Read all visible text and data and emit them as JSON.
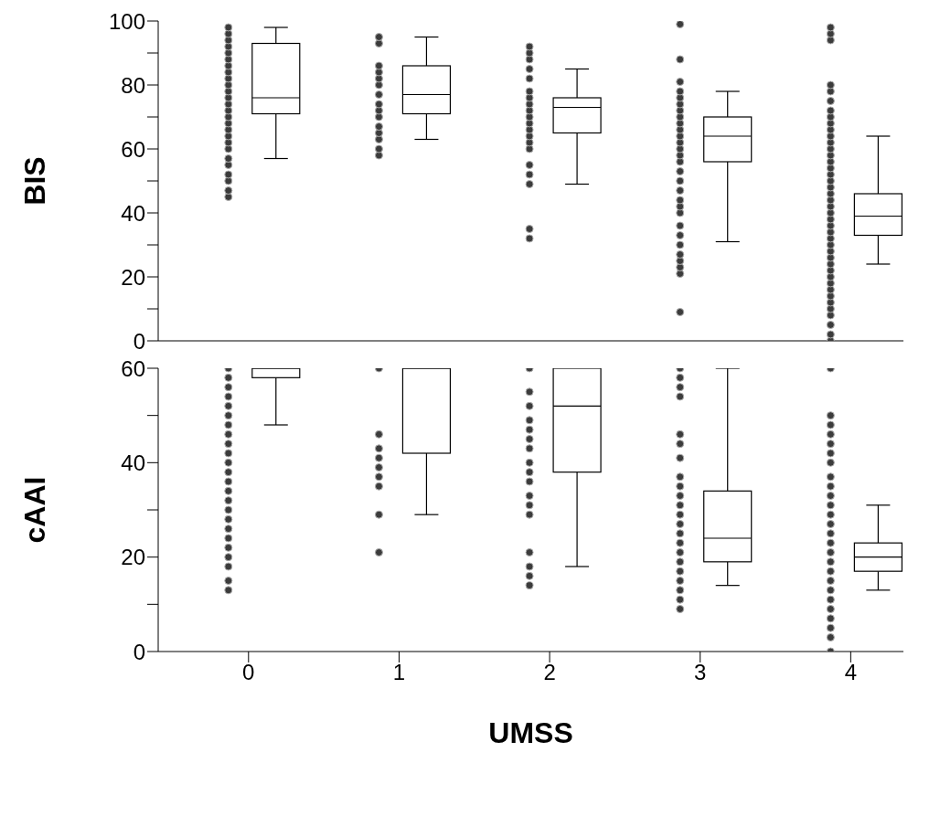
{
  "chart_data": [
    {
      "type": "box",
      "ylabel": "BIS",
      "categories": [
        "0",
        "1",
        "2",
        "3",
        "4"
      ],
      "tick_labels": "y",
      "marker": "circle",
      "ylim": [
        0,
        100
      ],
      "yticks": [
        0,
        {
          "value": 10,
          "label": null
        },
        20,
        {
          "value": 30,
          "label": null
        },
        40,
        {
          "value": 50,
          "label": null
        },
        60,
        {
          "value": 70,
          "label": null
        },
        80,
        {
          "value": 90,
          "label": null
        },
        100
      ],
      "boxes": [
        {
          "low": 57,
          "q1": 71,
          "median": 76,
          "q3": 93,
          "high": 98
        },
        {
          "low": 63,
          "q1": 71,
          "median": 77,
          "q3": 86,
          "high": 95
        },
        {
          "low": 49,
          "q1": 65,
          "median": 73,
          "q3": 76,
          "high": 85
        },
        {
          "low": 31,
          "q1": 56,
          "median": 64,
          "q3": 70,
          "high": 78
        },
        {
          "low": 24,
          "q1": 33,
          "median": 39,
          "q3": 46,
          "high": 64
        }
      ],
      "series": [
        {
          "type": "scatter",
          "color": "#3c3c3c",
          "x": [
            "0",
            "0",
            "0",
            "0",
            "0",
            "0",
            "0",
            "0",
            "0",
            "0",
            "0",
            "0",
            "0",
            "0",
            "0",
            "0",
            "0",
            "0",
            "0",
            "0",
            "0",
            "0",
            "0",
            "0",
            "0",
            "0"
          ],
          "values": [
            45,
            47,
            50,
            52,
            55,
            57,
            60,
            62,
            64,
            66,
            68,
            70,
            72,
            74,
            76,
            78,
            80,
            82,
            84,
            86,
            88,
            90,
            92,
            94,
            96,
            98
          ]
        },
        {
          "type": "scatter",
          "color": "#3c3c3c",
          "x": [
            "1",
            "1",
            "1",
            "1",
            "1",
            "1",
            "1",
            "1",
            "1",
            "1",
            "1",
            "1",
            "1",
            "1",
            "1"
          ],
          "values": [
            58,
            60,
            63,
            65,
            67,
            70,
            72,
            74,
            77,
            80,
            82,
            84,
            86,
            93,
            95
          ]
        },
        {
          "type": "scatter",
          "color": "#3c3c3c",
          "x": [
            "2",
            "2",
            "2",
            "2",
            "2",
            "2",
            "2",
            "2",
            "2",
            "2",
            "2",
            "2",
            "2",
            "2",
            "2",
            "2",
            "2",
            "2",
            "2",
            "2"
          ],
          "values": [
            32,
            35,
            49,
            52,
            55,
            60,
            62,
            64,
            66,
            68,
            70,
            72,
            74,
            76,
            78,
            82,
            85,
            88,
            90,
            92
          ]
        },
        {
          "type": "scatter",
          "color": "#3c3c3c",
          "x": [
            "3",
            "3",
            "3",
            "3",
            "3",
            "3",
            "3",
            "3",
            "3",
            "3",
            "3",
            "3",
            "3",
            "3",
            "3",
            "3",
            "3",
            "3",
            "3",
            "3",
            "3",
            "3",
            "3",
            "3",
            "3",
            "3",
            "3",
            "3",
            "3"
          ],
          "values": [
            9,
            21,
            23,
            25,
            27,
            30,
            33,
            36,
            40,
            42,
            44,
            47,
            50,
            53,
            56,
            58,
            60,
            62,
            64,
            66,
            68,
            70,
            72,
            74,
            76,
            78,
            81,
            88,
            99
          ]
        },
        {
          "type": "scatter",
          "color": "#3c3c3c",
          "x": [
            "4",
            "4",
            "4",
            "4",
            "4",
            "4",
            "4",
            "4",
            "4",
            "4",
            "4",
            "4",
            "4",
            "4",
            "4",
            "4",
            "4",
            "4",
            "4",
            "4",
            "4",
            "4",
            "4",
            "4",
            "4",
            "4",
            "4",
            "4",
            "4",
            "4",
            "4",
            "4",
            "4",
            "4",
            "4",
            "4",
            "4",
            "4",
            "4",
            "4",
            "4",
            "4"
          ],
          "values": [
            0,
            2,
            5,
            8,
            10,
            12,
            14,
            16,
            18,
            20,
            22,
            24,
            26,
            28,
            30,
            32,
            34,
            36,
            38,
            40,
            42,
            44,
            46,
            48,
            50,
            52,
            54,
            56,
            58,
            60,
            62,
            64,
            66,
            68,
            70,
            72,
            75,
            78,
            80,
            94,
            96,
            98
          ]
        }
      ]
    },
    {
      "type": "box",
      "ylabel": "cAAI",
      "xlabel": "UMSS",
      "categories": [
        "0",
        "1",
        "2",
        "3",
        "4"
      ],
      "marker": "circle",
      "ylim": [
        0,
        60
      ],
      "yticks": [
        0,
        {
          "value": 10,
          "label": null
        },
        20,
        {
          "value": 30,
          "label": null
        },
        40,
        {
          "value": 50,
          "label": null
        },
        60
      ],
      "boxes": [
        {
          "low": 48,
          "q1": 58,
          "median": 60,
          "q3": 60,
          "high": 60
        },
        {
          "low": 29,
          "q1": 42,
          "median": 60,
          "q3": 60,
          "high": 60
        },
        {
          "low": 18,
          "q1": 38,
          "median": 52,
          "q3": 60,
          "high": 60
        },
        {
          "low": 14,
          "q1": 19,
          "median": 24,
          "q3": 34,
          "high": 60
        },
        {
          "low": 13,
          "q1": 17,
          "median": 20,
          "q3": 23,
          "high": 31
        }
      ],
      "series": [
        {
          "type": "scatter",
          "color": "#3c3c3c",
          "x": [
            "0",
            "0",
            "0",
            "0",
            "0",
            "0",
            "0",
            "0",
            "0",
            "0",
            "0",
            "0",
            "0",
            "0",
            "0",
            "0",
            "0",
            "0",
            "0",
            "0",
            "0",
            "0",
            "0",
            "0"
          ],
          "values": [
            13,
            15,
            18,
            20,
            22,
            24,
            26,
            28,
            30,
            32,
            34,
            36,
            38,
            40,
            42,
            44,
            46,
            48,
            50,
            52,
            54,
            56,
            58,
            60
          ]
        },
        {
          "type": "scatter",
          "color": "#3c3c3c",
          "x": [
            "1",
            "1",
            "1",
            "1",
            "1",
            "1",
            "1",
            "1",
            "1"
          ],
          "values": [
            21,
            29,
            35,
            37,
            39,
            41,
            43,
            46,
            60
          ]
        },
        {
          "type": "scatter",
          "color": "#3c3c3c",
          "x": [
            "2",
            "2",
            "2",
            "2",
            "2",
            "2",
            "2",
            "2",
            "2",
            "2",
            "2",
            "2",
            "2",
            "2",
            "2",
            "2",
            "2"
          ],
          "values": [
            14,
            16,
            18,
            21,
            29,
            31,
            33,
            36,
            38,
            40,
            43,
            45,
            47,
            49,
            52,
            55,
            60
          ]
        },
        {
          "type": "scatter",
          "color": "#3c3c3c",
          "x": [
            "3",
            "3",
            "3",
            "3",
            "3",
            "3",
            "3",
            "3",
            "3",
            "3",
            "3",
            "3",
            "3",
            "3",
            "3",
            "3",
            "3",
            "3",
            "3",
            "3",
            "3",
            "3"
          ],
          "values": [
            9,
            11,
            13,
            15,
            17,
            19,
            21,
            23,
            25,
            27,
            29,
            31,
            33,
            35,
            37,
            41,
            44,
            46,
            54,
            56,
            58,
            60
          ]
        },
        {
          "type": "scatter",
          "color": "#3c3c3c",
          "x": [
            "4",
            "4",
            "4",
            "4",
            "4",
            "4",
            "4",
            "4",
            "4",
            "4",
            "4",
            "4",
            "4",
            "4",
            "4",
            "4",
            "4",
            "4",
            "4",
            "4",
            "4",
            "4",
            "4",
            "4",
            "4",
            "4"
          ],
          "values": [
            0,
            3,
            5,
            7,
            9,
            11,
            13,
            15,
            17,
            19,
            21,
            23,
            25,
            27,
            29,
            31,
            33,
            35,
            37,
            40,
            42,
            44,
            46,
            48,
            50,
            60
          ]
        }
      ]
    }
  ]
}
